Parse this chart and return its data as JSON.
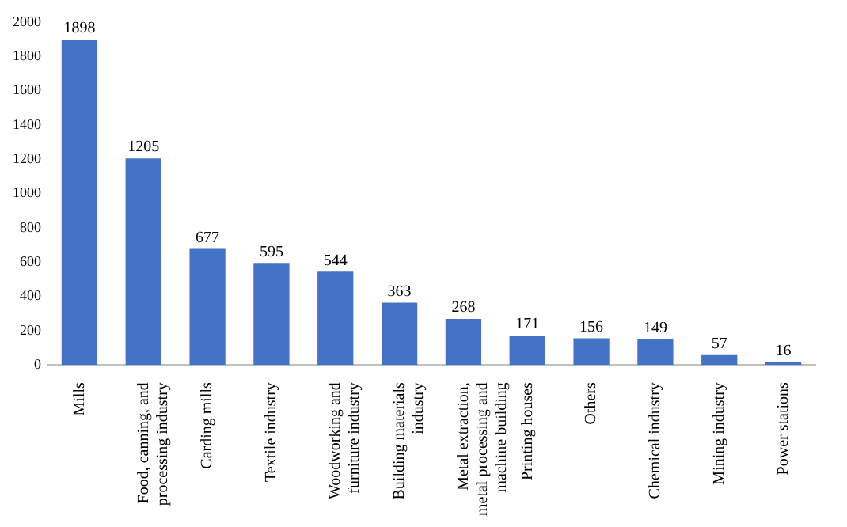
{
  "chart_data": {
    "type": "bar",
    "categories": [
      "Mills",
      "Food, canning, and processing industry",
      "Carding mills",
      "Textile industry",
      "Woodworking and furniture industry",
      "Building materials industry",
      "Metal extraction, metal processing and machine building",
      "Printing houses",
      "Others",
      "Chemical industry",
      "Mining industry",
      "Power stations"
    ],
    "values": [
      1898,
      1205,
      677,
      595,
      544,
      363,
      268,
      171,
      156,
      149,
      57,
      16
    ],
    "color": "#4472c4",
    "ylim": [
      0,
      2000
    ],
    "yticks": [
      0,
      200,
      400,
      600,
      800,
      1000,
      1200,
      1400,
      1600,
      1800,
      2000
    ],
    "data_labels": true
  }
}
